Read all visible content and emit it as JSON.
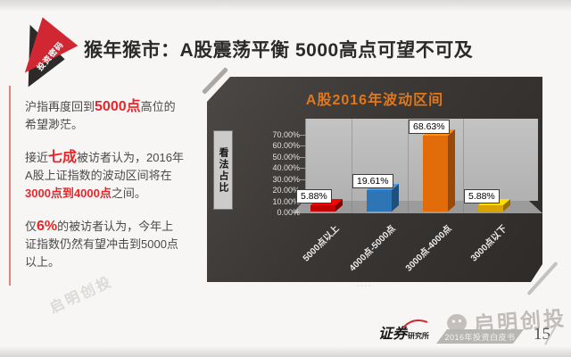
{
  "page": {
    "badge_label": "投资密码",
    "title": "猴年猴市：A股震荡平衡 5000高点可望不可及"
  },
  "left_panel": {
    "paragraphs": [
      {
        "segments": [
          {
            "t": "沪指再度回到",
            "s": "n"
          },
          {
            "t": "5000点",
            "s": "rb"
          },
          {
            "t": "高位的希望渺茫。",
            "s": "n"
          }
        ]
      },
      {
        "segments": [
          {
            "t": "接近",
            "s": "n"
          },
          {
            "t": "七成",
            "s": "rb"
          },
          {
            "t": "被访者认为，2016年A股上证指数的波动区间将在",
            "s": "n"
          },
          {
            "t": "3000点到4000点",
            "s": "r"
          },
          {
            "t": "之间。",
            "s": "n"
          }
        ]
      },
      {
        "segments": [
          {
            "t": "仅",
            "s": "n"
          },
          {
            "t": "6%",
            "s": "rb"
          },
          {
            "t": "的被访者认为，今年上证指数仍然有望冲击到5000点以上。",
            "s": "n"
          }
        ]
      }
    ]
  },
  "chart_data": {
    "type": "bar",
    "style": "3d-column",
    "title": "A股2016年波动区间",
    "title_color": "#e0781b",
    "ylabel": "看法占比",
    "categories": [
      "5000点以上",
      "4000点-5000点",
      "3000点-4000点",
      "3000点以下"
    ],
    "values": [
      5.88,
      19.61,
      68.63,
      5.88
    ],
    "value_labels": [
      "5.88%",
      "19.61%",
      "68.63%",
      "5.88%"
    ],
    "bar_colors": [
      "#c00000",
      "#2e75b6",
      "#e26b0a",
      "#d9a400"
    ],
    "yticks": [
      "70.00%",
      "60.00%",
      "50.00%",
      "40.00%",
      "30.00%",
      "20.00%",
      "10.00%",
      "0.00%"
    ],
    "ylim": [
      0,
      70
    ],
    "legend": false,
    "panel_background": "#3a3735"
  },
  "footer": {
    "caption_dots": "····",
    "logo_main": "证券",
    "logo_sub": "研究所",
    "banner_text": "2016年投资白皮书",
    "page_number": "15",
    "watermark": "启明创投",
    "watermark_faint": "启明创投"
  },
  "colors": {
    "accent_red": "#e8262a",
    "badge_red": "#d02732",
    "panel_dark": "#3a3735",
    "title_orange": "#e0781b"
  }
}
